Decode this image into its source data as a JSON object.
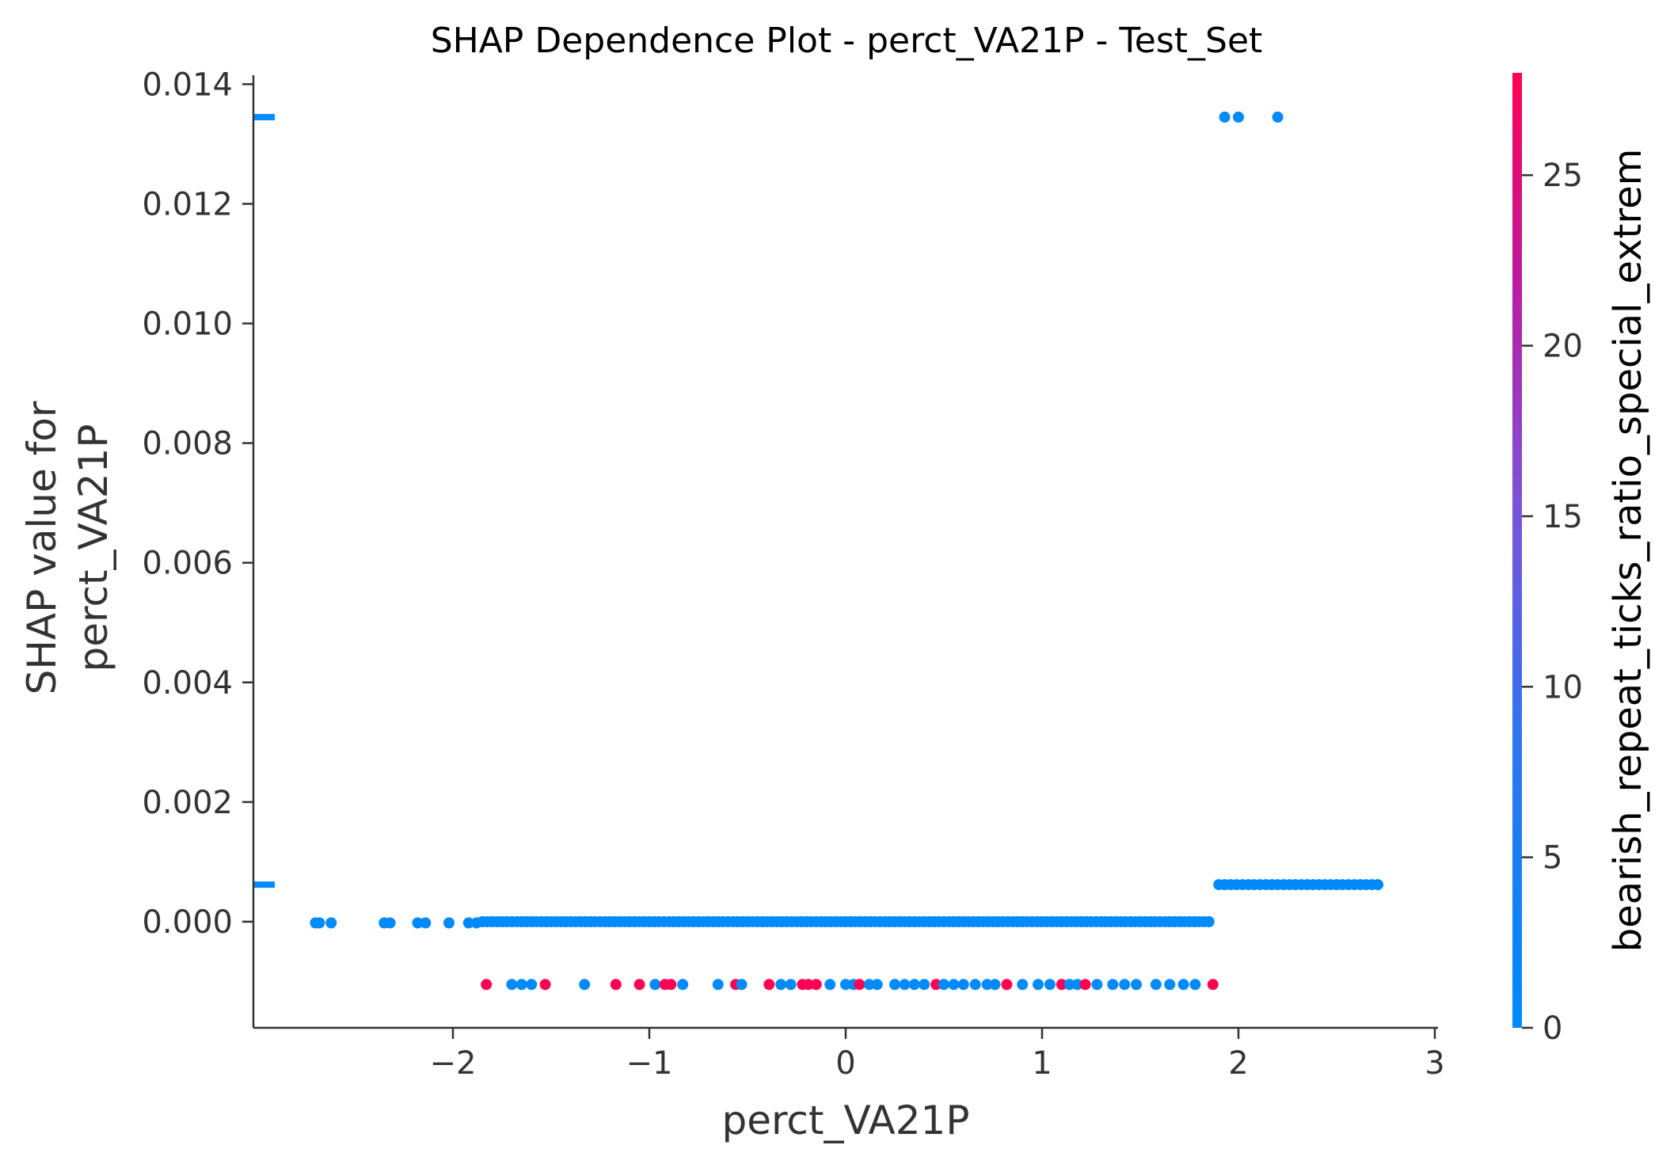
{
  "chart_data": {
    "type": "scatter",
    "title": "SHAP Dependence Plot - perct_VA21P - Test_Set",
    "xlabel": "perct_VA21P",
    "ylabel_line1": "SHAP value for",
    "ylabel_line2": "perct_VA21P",
    "xlim": [
      -2.95,
      3.0
    ],
    "ylim": [
      -0.00178,
      0.0142
    ],
    "x_ticks": [
      -2,
      -1,
      0,
      1,
      2,
      3
    ],
    "x_tick_labels": [
      "−2",
      "−1",
      "0",
      "1",
      "2",
      "3"
    ],
    "y_ticks": [
      0.0,
      0.002,
      0.004,
      0.006,
      0.008,
      0.01,
      0.012,
      0.014
    ],
    "y_tick_labels": [
      "0.000",
      "0.002",
      "0.004",
      "0.006",
      "0.008",
      "0.010",
      "0.012",
      "0.014"
    ],
    "colorbar": {
      "label": "bearish_repeat_ticks_ratio_special_extrem",
      "min": 0,
      "max": 28,
      "ticks": [
        0,
        5,
        10,
        15,
        20,
        25
      ],
      "tick_labels": [
        "0",
        "5",
        "10",
        "15",
        "20",
        "25"
      ],
      "color_low": "#008afb",
      "color_mid": "#7c52d9",
      "color_high": "#ff0052"
    },
    "margin_ticks_y": [
      0.01345,
      0.00062
    ],
    "grid": false,
    "series": [
      {
        "segments": [
          {
            "x_start": -1.85,
            "x_end": 1.87,
            "y": 0.0,
            "step": 0.025,
            "color_value": 0
          },
          {
            "x_start": 1.9,
            "x_end": 2.72,
            "y": 0.00062,
            "step": 0.03,
            "color_value": 0
          }
        ],
        "points": [
          {
            "x": -2.7,
            "y": -2e-05,
            "c": 0
          },
          {
            "x": -2.68,
            "y": -2e-05,
            "c": 0
          },
          {
            "x": -2.62,
            "y": -2e-05,
            "c": 0
          },
          {
            "x": -2.35,
            "y": -2e-05,
            "c": 0
          },
          {
            "x": -2.32,
            "y": -2e-05,
            "c": 0
          },
          {
            "x": -2.18,
            "y": -2e-05,
            "c": 0
          },
          {
            "x": -2.14,
            "y": -2e-05,
            "c": 0
          },
          {
            "x": -2.02,
            "y": -2e-05,
            "c": 0
          },
          {
            "x": -1.92,
            "y": -2e-05,
            "c": 0
          },
          {
            "x": -1.88,
            "y": -2e-05,
            "c": 0
          },
          {
            "x": 1.93,
            "y": 0.01345,
            "c": 0
          },
          {
            "x": 2.0,
            "y": 0.01345,
            "c": 0
          },
          {
            "x": 2.2,
            "y": 0.01345,
            "c": 0
          },
          {
            "x": -1.83,
            "y": -0.00105,
            "c": 28
          },
          {
            "x": -1.7,
            "y": -0.00105,
            "c": 0
          },
          {
            "x": -1.65,
            "y": -0.00105,
            "c": 0
          },
          {
            "x": -1.6,
            "y": -0.00105,
            "c": 0
          },
          {
            "x": -1.53,
            "y": -0.00105,
            "c": 28
          },
          {
            "x": -1.33,
            "y": -0.00105,
            "c": 0
          },
          {
            "x": -1.17,
            "y": -0.00105,
            "c": 28
          },
          {
            "x": -1.05,
            "y": -0.00105,
            "c": 28
          },
          {
            "x": -0.97,
            "y": -0.00105,
            "c": 0
          },
          {
            "x": -0.92,
            "y": -0.00105,
            "c": 28
          },
          {
            "x": -0.89,
            "y": -0.00105,
            "c": 28
          },
          {
            "x": -0.83,
            "y": -0.00105,
            "c": 0
          },
          {
            "x": -0.65,
            "y": -0.00105,
            "c": 0
          },
          {
            "x": -0.56,
            "y": -0.00105,
            "c": 28
          },
          {
            "x": -0.53,
            "y": -0.00105,
            "c": 0
          },
          {
            "x": -0.39,
            "y": -0.00105,
            "c": 28
          },
          {
            "x": -0.33,
            "y": -0.00105,
            "c": 0
          },
          {
            "x": -0.28,
            "y": -0.00105,
            "c": 0
          },
          {
            "x": -0.22,
            "y": -0.00105,
            "c": 28
          },
          {
            "x": -0.19,
            "y": -0.00105,
            "c": 28
          },
          {
            "x": -0.15,
            "y": -0.00105,
            "c": 28
          },
          {
            "x": -0.08,
            "y": -0.00105,
            "c": 0
          },
          {
            "x": 0.0,
            "y": -0.00105,
            "c": 0
          },
          {
            "x": 0.04,
            "y": -0.00105,
            "c": 0
          },
          {
            "x": 0.07,
            "y": -0.00105,
            "c": 28
          },
          {
            "x": 0.12,
            "y": -0.00105,
            "c": 0
          },
          {
            "x": 0.16,
            "y": -0.00105,
            "c": 0
          },
          {
            "x": 0.25,
            "y": -0.00105,
            "c": 0
          },
          {
            "x": 0.3,
            "y": -0.00105,
            "c": 0
          },
          {
            "x": 0.35,
            "y": -0.00105,
            "c": 0
          },
          {
            "x": 0.4,
            "y": -0.00105,
            "c": 0
          },
          {
            "x": 0.46,
            "y": -0.00105,
            "c": 28
          },
          {
            "x": 0.5,
            "y": -0.00105,
            "c": 0
          },
          {
            "x": 0.55,
            "y": -0.00105,
            "c": 0
          },
          {
            "x": 0.6,
            "y": -0.00105,
            "c": 0
          },
          {
            "x": 0.66,
            "y": -0.00105,
            "c": 0
          },
          {
            "x": 0.72,
            "y": -0.00105,
            "c": 0
          },
          {
            "x": 0.76,
            "y": -0.00105,
            "c": 0
          },
          {
            "x": 0.82,
            "y": -0.00105,
            "c": 28
          },
          {
            "x": 0.9,
            "y": -0.00105,
            "c": 0
          },
          {
            "x": 0.98,
            "y": -0.00105,
            "c": 0
          },
          {
            "x": 1.04,
            "y": -0.00105,
            "c": 0
          },
          {
            "x": 1.1,
            "y": -0.00105,
            "c": 28
          },
          {
            "x": 1.14,
            "y": -0.00105,
            "c": 0
          },
          {
            "x": 1.18,
            "y": -0.00105,
            "c": 0
          },
          {
            "x": 1.22,
            "y": -0.00105,
            "c": 28
          },
          {
            "x": 1.28,
            "y": -0.00105,
            "c": 0
          },
          {
            "x": 1.36,
            "y": -0.00105,
            "c": 0
          },
          {
            "x": 1.42,
            "y": -0.00105,
            "c": 0
          },
          {
            "x": 1.48,
            "y": -0.00105,
            "c": 0
          },
          {
            "x": 1.58,
            "y": -0.00105,
            "c": 0
          },
          {
            "x": 1.65,
            "y": -0.00105,
            "c": 0
          },
          {
            "x": 1.72,
            "y": -0.00105,
            "c": 0
          },
          {
            "x": 1.78,
            "y": -0.00105,
            "c": 0
          },
          {
            "x": 1.87,
            "y": -0.00105,
            "c": 28
          }
        ]
      }
    ]
  }
}
